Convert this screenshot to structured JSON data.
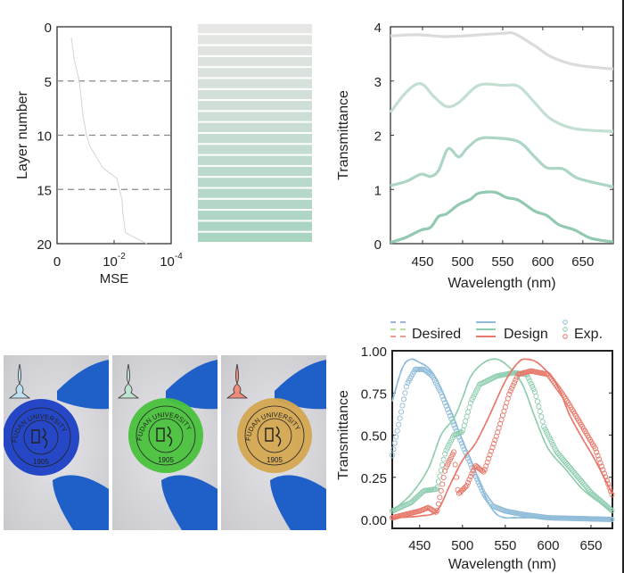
{
  "chart_data": [
    {
      "type": "line",
      "panel": "layer-mse",
      "xlabel": "MSE",
      "ylabel": "Layer number",
      "x_tick_labels": [
        {
          "base": "0",
          "exp": ""
        },
        {
          "base": "10",
          "exp": "-2"
        },
        {
          "base": "10",
          "exp": "-4"
        }
      ],
      "y_ticks": [
        0,
        5,
        10,
        15,
        20
      ],
      "y_reversed": true,
      "dashed_lines_at": [
        5,
        10,
        15
      ],
      "curve": {
        "layers": [
          1,
          3,
          5,
          8,
          10,
          11,
          13,
          14,
          16,
          17,
          19,
          20
        ],
        "mse_exponent": [
          -0.5,
          -0.6,
          -0.78,
          -0.9,
          -1.03,
          -1.15,
          -1.6,
          -2.1,
          -2.28,
          -2.3,
          -2.4,
          -3.15
        ]
      },
      "colors": {
        "curve": "#d0d6d4",
        "dash": "#888888"
      }
    },
    {
      "type": "bar",
      "panel": "layer-stack",
      "layers": 20,
      "colors": {
        "top": "#e6e6e4",
        "bottom": "#a8d4c0"
      }
    },
    {
      "type": "line",
      "panel": "stacked-transmittance",
      "xlabel": "Wavelength (nm)",
      "ylabel": "Transmittance",
      "xlim": [
        410,
        688
      ],
      "ylim": [
        0,
        4
      ],
      "x_ticks": [
        450,
        500,
        550,
        600,
        650
      ],
      "y_ticks": [
        0,
        1,
        2,
        3,
        4
      ],
      "series": [
        {
          "color": "#d9dcda",
          "x": [
            410,
            430,
            450,
            475,
            500,
            550,
            565,
            590,
            610,
            640,
            688
          ],
          "y": [
            3.83,
            3.85,
            3.85,
            3.82,
            3.83,
            3.88,
            3.87,
            3.65,
            3.45,
            3.3,
            3.22
          ]
        },
        {
          "color": "#c3dfd2",
          "x": [
            410,
            430,
            448,
            465,
            480,
            495,
            520,
            550,
            570,
            590,
            610,
            640,
            688
          ],
          "y": [
            2.42,
            2.8,
            2.95,
            2.7,
            2.53,
            2.6,
            2.92,
            2.92,
            2.9,
            2.6,
            2.3,
            2.12,
            2.07
          ]
        },
        {
          "color": "#acd6c3",
          "x": [
            410,
            430,
            448,
            460,
            470,
            482,
            495,
            505,
            520,
            540,
            570,
            590,
            605,
            625,
            645,
            688
          ],
          "y": [
            1.07,
            1.15,
            1.28,
            1.24,
            1.35,
            1.75,
            1.6,
            1.75,
            1.93,
            1.95,
            1.88,
            1.6,
            1.4,
            1.38,
            1.2,
            1.05
          ]
        },
        {
          "color": "#92c9b1",
          "x": [
            410,
            430,
            448,
            460,
            470,
            480,
            495,
            510,
            520,
            540,
            555,
            570,
            590,
            605,
            620,
            640,
            660,
            688
          ],
          "y": [
            0.02,
            0.12,
            0.25,
            0.3,
            0.5,
            0.55,
            0.72,
            0.82,
            0.93,
            0.95,
            0.85,
            0.8,
            0.6,
            0.52,
            0.35,
            0.25,
            0.1,
            0.03
          ]
        }
      ]
    },
    {
      "type": "line",
      "panel": "rgb-transmittance",
      "xlabel": "Wavelength (nm)",
      "ylabel": "Transmittance",
      "xlim": [
        418,
        675
      ],
      "ylim": [
        0,
        1
      ],
      "x_ticks": [
        450,
        500,
        550,
        600,
        650
      ],
      "y_ticks": [
        0,
        0.25,
        0.5,
        0.75,
        1
      ],
      "y_tick_labels": [
        "0.00",
        "0.25",
        "0.50",
        "0.75",
        "1.00"
      ],
      "legend": {
        "placement": "top",
        "desired": "Desired",
        "design": "Design",
        "exp": "Exp."
      },
      "series": [
        {
          "color": "#8fbcd9",
          "desired_color": "#7f95c8",
          "design": {
            "x": [
              418,
              430,
              440,
              450,
              460,
              470,
              480,
              490,
              500,
              510,
              520,
              530,
              540,
              550,
              560,
              600,
              675
            ],
            "y": [
              0.7,
              0.9,
              0.95,
              0.93,
              0.9,
              0.83,
              0.72,
              0.6,
              0.47,
              0.35,
              0.22,
              0.1,
              0.03,
              0.01,
              0.01,
              0.01,
              0.01
            ]
          },
          "exp": {
            "x": [
              418,
              425,
              435,
              445,
              455,
              465,
              475,
              485,
              495,
              505,
              515,
              525,
              535,
              550,
              570,
              600,
              675
            ],
            "y": [
              0.38,
              0.55,
              0.8,
              0.89,
              0.89,
              0.85,
              0.75,
              0.62,
              0.5,
              0.38,
              0.26,
              0.15,
              0.08,
              0.05,
              0.03,
              0.01,
              0.0
            ]
          }
        },
        {
          "color": "#8fcdb0",
          "desired_color": "#a9d07a",
          "design": {
            "x": [
              418,
              440,
              460,
              475,
              490,
              500,
              510,
              525,
              540,
              555,
              570,
              585,
              600,
              620,
              640,
              660,
              675
            ],
            "y": [
              0.05,
              0.15,
              0.3,
              0.5,
              0.6,
              0.72,
              0.85,
              0.93,
              0.95,
              0.9,
              0.8,
              0.6,
              0.42,
              0.3,
              0.18,
              0.1,
              0.05
            ]
          },
          "exp": {
            "x": [
              418,
              440,
              455,
              470,
              480,
              490,
              500,
              510,
              520,
              540,
              560,
              575,
              585,
              595,
              610,
              630,
              650,
              675
            ],
            "y": [
              0.05,
              0.1,
              0.17,
              0.18,
              0.4,
              0.5,
              0.52,
              0.7,
              0.8,
              0.85,
              0.87,
              0.86,
              0.75,
              0.55,
              0.4,
              0.28,
              0.16,
              0.05
            ]
          }
        },
        {
          "color": "#e8786a",
          "desired_color": "#e8786a",
          "design": {
            "x": [
              418,
              450,
              470,
              485,
              500,
              515,
              530,
              550,
              565,
              575,
              590,
              610,
              625,
              640,
              655,
              675
            ],
            "y": [
              0.01,
              0.02,
              0.05,
              0.2,
              0.35,
              0.45,
              0.6,
              0.82,
              0.93,
              0.95,
              0.92,
              0.8,
              0.62,
              0.48,
              0.35,
              0.15
            ]
          },
          "exp": {
            "x": [
              418,
              450,
              460,
              470,
              480,
              490,
              495,
              505,
              515,
              525,
              540,
              555,
              565,
              580,
              600,
              620,
              640,
              655,
              675
            ],
            "y": [
              0.01,
              0.05,
              0.07,
              0.04,
              0.3,
              0.4,
              0.15,
              0.2,
              0.32,
              0.28,
              0.5,
              0.75,
              0.86,
              0.88,
              0.86,
              0.72,
              0.55,
              0.42,
              0.14
            ]
          }
        }
      ]
    }
  ],
  "photos": [
    {
      "disk_color": "#1b3fc4",
      "icon_color": "#bfe0ee",
      "seal_text": "FUDAN UNIVERSITY",
      "year": "1905"
    },
    {
      "disk_color": "#49c23c",
      "icon_color": "#bfe3cf",
      "seal_text": "FUDAN UNIVERSITY",
      "year": "1905"
    },
    {
      "disk_color": "#d4a650",
      "icon_color": "#ee8b7d",
      "seal_text": "FUDAN UNIVERSITY",
      "year": "1905"
    }
  ]
}
